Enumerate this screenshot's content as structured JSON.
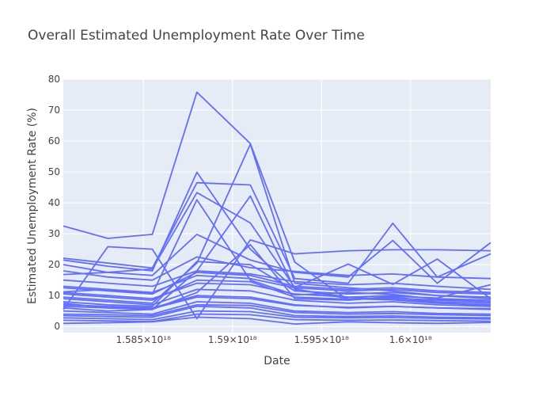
{
  "chart_data": {
    "type": "line",
    "title": "Overall Estimated Unemployment Rate Over Time",
    "xlabel": "Date",
    "ylabel": "Estimated Unemployment Rate (%)",
    "xlim": [
      1.5805e+18,
      1.6045e+18
    ],
    "ylim": [
      -2,
      80
    ],
    "x_ticks": [
      1.585e+18,
      1.59e+18,
      1.595e+18,
      1.6e+18
    ],
    "x_tick_labels": [
      "1.585×10¹⁸",
      "1.59×10¹⁸",
      "1.595×10¹⁸",
      "1.6×10¹⁸"
    ],
    "y_ticks": [
      0,
      10,
      20,
      30,
      40,
      50,
      60,
      70,
      80
    ],
    "grid": true,
    "line_color": "#636efa",
    "plot_bg": "#e5ecf6",
    "series": [
      {
        "x": [
          1.5805e+18,
          1.583e+18,
          1.5855e+18,
          1.588e+18,
          1.591e+18,
          1.5935e+18,
          1.5965e+18,
          1.599e+18,
          1.6015e+18,
          1.6045e+18
        ],
        "values": [
          32.5,
          28.5,
          29.8,
          75.8,
          59.2,
          20.8,
          8.5,
          9.8,
          9.2,
          13.5
        ]
      },
      {
        "x": [
          1.5805e+18,
          1.583e+18,
          1.5855e+18,
          1.588e+18,
          1.591e+18,
          1.5935e+18,
          1.5965e+18,
          1.599e+18,
          1.6015e+18,
          1.6045e+18
        ],
        "values": [
          22.1,
          20.5,
          18.9,
          46.5,
          45.8,
          15.5,
          14.0,
          33.4,
          16.0,
          23.5
        ]
      },
      {
        "x": [
          1.5805e+18,
          1.583e+18,
          1.5855e+18,
          1.588e+18,
          1.591e+18,
          1.5935e+18,
          1.5965e+18,
          1.599e+18,
          1.6015e+18,
          1.6045e+18
        ],
        "values": [
          21.5,
          19.5,
          18.0,
          49.9,
          25.0,
          12.2,
          9.0,
          8.6,
          7.5,
          7.0
        ]
      },
      {
        "x": [
          1.5805e+18,
          1.583e+18,
          1.5855e+18,
          1.588e+18,
          1.591e+18,
          1.5935e+18,
          1.5965e+18,
          1.599e+18,
          1.6015e+18,
          1.6045e+18
        ],
        "values": [
          16.8,
          17.5,
          18.6,
          43.3,
          33.5,
          12.6,
          20.2,
          13.6,
          21.8,
          9.0
        ]
      },
      {
        "x": [
          1.5805e+18,
          1.583e+18,
          1.5855e+18,
          1.588e+18,
          1.591e+18,
          1.5935e+18,
          1.5965e+18,
          1.599e+18,
          1.6015e+18,
          1.6045e+18
        ],
        "values": [
          11.2,
          12.0,
          10.5,
          41.0,
          15.0,
          10.2,
          11.0,
          10.4,
          8.8,
          8.0
        ]
      },
      {
        "x": [
          1.5805e+18,
          1.583e+18,
          1.5855e+18,
          1.588e+18,
          1.591e+18,
          1.5935e+18,
          1.5965e+18,
          1.599e+18,
          1.6015e+18,
          1.6045e+18
        ],
        "values": [
          9.5,
          8.5,
          7.5,
          20.5,
          59.0,
          14.0,
          12.5,
          11.5,
          10.0,
          9.0
        ]
      },
      {
        "x": [
          1.5805e+18,
          1.583e+18,
          1.5855e+18,
          1.588e+18,
          1.591e+18,
          1.5935e+18,
          1.5965e+18,
          1.599e+18,
          1.6015e+18,
          1.6045e+18
        ],
        "values": [
          7.5,
          6.0,
          5.5,
          18.0,
          42.2,
          12.0,
          9.5,
          8.8,
          7.8,
          6.5
        ]
      },
      {
        "x": [
          1.5805e+18,
          1.583e+18,
          1.5855e+18,
          1.588e+18,
          1.591e+18,
          1.5935e+18,
          1.5965e+18,
          1.599e+18,
          1.6015e+18,
          1.6045e+18
        ],
        "values": [
          5.5,
          25.8,
          25.0,
          2.5,
          28.0,
          23.5,
          24.5,
          24.8,
          24.8,
          24.5
        ]
      },
      {
        "x": [
          1.5805e+18,
          1.583e+18,
          1.5855e+18,
          1.588e+18,
          1.591e+18,
          1.5935e+18,
          1.5965e+18,
          1.599e+18,
          1.6015e+18,
          1.6045e+18
        ],
        "values": [
          20.0,
          17.5,
          16.5,
          29.8,
          21.5,
          17.5,
          16.0,
          27.8,
          14.0,
          27.1
        ]
      },
      {
        "x": [
          1.5805e+18,
          1.583e+18,
          1.5855e+18,
          1.588e+18,
          1.591e+18,
          1.5935e+18,
          1.5965e+18,
          1.599e+18,
          1.6015e+18,
          1.6045e+18
        ],
        "values": [
          18.0,
          16.0,
          15.0,
          22.5,
          19.0,
          17.8,
          16.5,
          17.0,
          16.0,
          15.5
        ]
      },
      {
        "x": [
          1.5805e+18,
          1.583e+18,
          1.5855e+18,
          1.588e+18,
          1.591e+18,
          1.5935e+18,
          1.5965e+18,
          1.599e+18,
          1.6015e+18,
          1.6045e+18
        ],
        "values": [
          15.0,
          14.0,
          13.0,
          18.0,
          17.0,
          14.5,
          13.5,
          14.0,
          13.0,
          12.0
        ]
      },
      {
        "x": [
          1.5805e+18,
          1.583e+18,
          1.5855e+18,
          1.588e+18,
          1.591e+18,
          1.5935e+18,
          1.5965e+18,
          1.599e+18,
          1.6015e+18,
          1.6045e+18
        ],
        "values": [
          13.0,
          12.0,
          11.0,
          16.5,
          15.5,
          12.5,
          11.5,
          12.0,
          11.0,
          10.5
        ]
      },
      {
        "x": [
          1.5805e+18,
          1.583e+18,
          1.5855e+18,
          1.588e+18,
          1.591e+18,
          1.5935e+18,
          1.5965e+18,
          1.599e+18,
          1.6015e+18,
          1.6045e+18
        ],
        "values": [
          11.0,
          10.0,
          9.0,
          14.0,
          13.5,
          10.5,
          9.5,
          10.0,
          9.0,
          8.5
        ]
      },
      {
        "x": [
          1.5805e+18,
          1.583e+18,
          1.5855e+18,
          1.588e+18,
          1.591e+18,
          1.5935e+18,
          1.5965e+18,
          1.599e+18,
          1.6015e+18,
          1.6045e+18
        ],
        "values": [
          9.0,
          8.0,
          7.0,
          12.0,
          11.5,
          8.5,
          7.5,
          8.0,
          7.0,
          6.5
        ]
      },
      {
        "x": [
          1.5805e+18,
          1.583e+18,
          1.5855e+18,
          1.588e+18,
          1.591e+18,
          1.5935e+18,
          1.5965e+18,
          1.599e+18,
          1.6015e+18,
          1.6045e+18
        ],
        "values": [
          7.0,
          6.5,
          6.0,
          10.0,
          9.5,
          7.0,
          6.0,
          6.5,
          6.0,
          5.5
        ]
      },
      {
        "x": [
          1.5805e+18,
          1.583e+18,
          1.5855e+18,
          1.588e+18,
          1.591e+18,
          1.5935e+18,
          1.5965e+18,
          1.599e+18,
          1.6015e+18,
          1.6045e+18
        ],
        "values": [
          5.0,
          4.5,
          4.0,
          8.0,
          7.5,
          5.0,
          4.5,
          4.8,
          4.2,
          4.0
        ]
      },
      {
        "x": [
          1.5805e+18,
          1.583e+18,
          1.5855e+18,
          1.588e+18,
          1.591e+18,
          1.5935e+18,
          1.5965e+18,
          1.599e+18,
          1.6015e+18,
          1.6045e+18
        ],
        "values": [
          3.5,
          3.2,
          3.0,
          6.5,
          6.0,
          3.5,
          3.2,
          3.4,
          3.0,
          2.8
        ]
      },
      {
        "x": [
          1.5805e+18,
          1.583e+18,
          1.5855e+18,
          1.588e+18,
          1.591e+18,
          1.5935e+18,
          1.5965e+18,
          1.599e+18,
          1.6015e+18,
          1.6045e+18
        ],
        "values": [
          2.0,
          1.8,
          1.6,
          4.0,
          3.8,
          2.2,
          2.0,
          2.1,
          1.9,
          1.7
        ]
      },
      {
        "x": [
          1.5805e+18,
          1.583e+18,
          1.5855e+18,
          1.588e+18,
          1.591e+18,
          1.5935e+18,
          1.5965e+18,
          1.599e+18,
          1.6015e+18,
          1.6045e+18
        ],
        "values": [
          1.0,
          1.2,
          1.5,
          3.0,
          2.5,
          0.8,
          1.5,
          1.2,
          1.0,
          1.3
        ]
      },
      {
        "x": [
          1.5805e+18,
          1.583e+18,
          1.5855e+18,
          1.588e+18,
          1.591e+18,
          1.5935e+18,
          1.5965e+18,
          1.599e+18,
          1.6015e+18,
          1.6045e+18
        ],
        "values": [
          6.0,
          5.0,
          5.5,
          11.0,
          26.5,
          9.0,
          8.5,
          9.5,
          8.0,
          7.5
        ]
      },
      {
        "x": [
          1.5805e+18,
          1.583e+18,
          1.5855e+18,
          1.588e+18,
          1.591e+18,
          1.5935e+18,
          1.5965e+18,
          1.599e+18,
          1.6015e+18,
          1.6045e+18
        ],
        "values": [
          8.0,
          7.0,
          6.5,
          21.0,
          20.0,
          11.5,
          10.5,
          11.0,
          10.0,
          9.5
        ]
      },
      {
        "x": [
          1.5805e+18,
          1.583e+18,
          1.5855e+18,
          1.588e+18,
          1.591e+18,
          1.5935e+18,
          1.5965e+18,
          1.599e+18,
          1.6015e+18,
          1.6045e+18
        ],
        "values": [
          10.5,
          9.5,
          8.5,
          15.0,
          14.5,
          9.5,
          8.8,
          9.2,
          8.5,
          8.0
        ]
      },
      {
        "x": [
          1.5805e+18,
          1.583e+18,
          1.5855e+18,
          1.588e+18,
          1.591e+18,
          1.5935e+18,
          1.5965e+18,
          1.599e+18,
          1.6015e+18,
          1.6045e+18
        ],
        "values": [
          4.0,
          3.8,
          3.5,
          7.0,
          6.8,
          4.5,
          4.0,
          4.2,
          3.8,
          3.5
        ]
      },
      {
        "x": [
          1.5805e+18,
          1.583e+18,
          1.5855e+18,
          1.588e+18,
          1.591e+18,
          1.5935e+18,
          1.5965e+18,
          1.599e+18,
          1.6015e+18,
          1.6045e+18
        ],
        "values": [
          12.5,
          11.5,
          10.5,
          17.5,
          16.5,
          13.0,
          12.0,
          12.5,
          11.5,
          11.0
        ]
      },
      {
        "x": [
          1.5805e+18,
          1.583e+18,
          1.5855e+18,
          1.588e+18,
          1.591e+18,
          1.5935e+18,
          1.5965e+18,
          1.599e+18,
          1.6015e+18,
          1.6045e+18
        ],
        "values": [
          6.5,
          6.0,
          5.8,
          9.5,
          9.0,
          6.8,
          6.2,
          6.5,
          6.0,
          5.8
        ]
      },
      {
        "x": [
          1.5805e+18,
          1.583e+18,
          1.5855e+18,
          1.588e+18,
          1.591e+18,
          1.5935e+18,
          1.5965e+18,
          1.599e+18,
          1.6015e+18,
          1.6045e+18
        ],
        "values": [
          2.8,
          2.5,
          2.2,
          5.0,
          4.8,
          3.0,
          2.8,
          2.9,
          2.6,
          2.4
        ]
      }
    ]
  }
}
